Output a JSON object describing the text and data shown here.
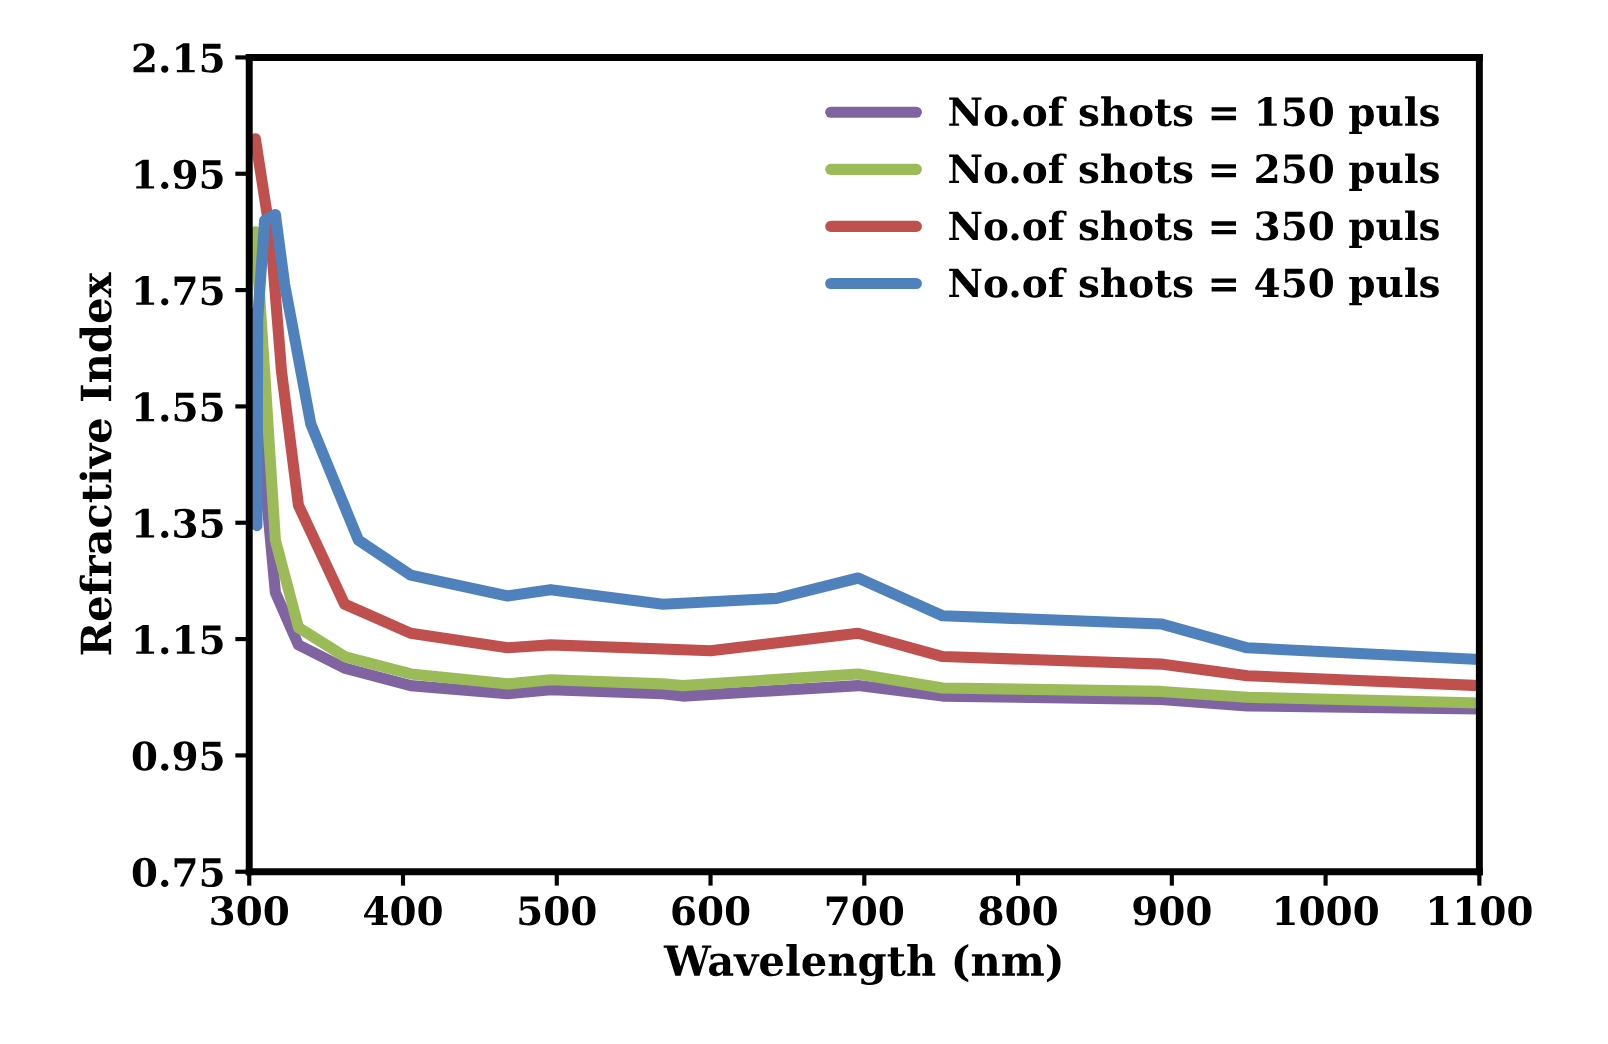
{
  "chart_data": {
    "type": "line",
    "xlabel": "Wavelength (nm)",
    "ylabel": "Refractive Index",
    "xlim": [
      300,
      1100
    ],
    "xticks": [
      300,
      400,
      500,
      600,
      700,
      800,
      900,
      1000,
      1100
    ],
    "ylim": [
      0.75,
      2.15
    ],
    "yticks": [
      0.75,
      0.95,
      1.15,
      1.35,
      1.55,
      1.75,
      1.95,
      2.15
    ],
    "grid": false,
    "legend": "top right",
    "marker": "none",
    "line_style": "solid",
    "series": [
      {
        "name": "No.of shots = 150 puls",
        "color": "#8064a2",
        "x": [
          303,
          310,
          317,
          332,
          362,
          405,
          468,
          496,
          569,
          582,
          696,
          751,
          893,
          949,
          1100
        ],
        "values": [
          1.71,
          1.43,
          1.23,
          1.14,
          1.1,
          1.07,
          1.056,
          1.063,
          1.056,
          1.052,
          1.07,
          1.052,
          1.046,
          1.035,
          1.03
        ]
      },
      {
        "name": "No.of shots = 250 puls",
        "color": "#9bbb59",
        "x": [
          304,
          310,
          317,
          332,
          362,
          405,
          468,
          496,
          569,
          582,
          696,
          751,
          893,
          949,
          1100
        ],
        "values": [
          1.85,
          1.61,
          1.32,
          1.17,
          1.12,
          1.09,
          1.073,
          1.08,
          1.073,
          1.07,
          1.09,
          1.066,
          1.06,
          1.05,
          1.04
        ]
      },
      {
        "name": "No.of shots = 350 puls",
        "color": "#c0504d",
        "x": [
          304,
          314,
          321,
          332,
          362,
          405,
          468,
          496,
          600,
          696,
          751,
          893,
          949,
          1100
        ],
        "values": [
          2.01,
          1.84,
          1.61,
          1.38,
          1.21,
          1.16,
          1.135,
          1.14,
          1.13,
          1.16,
          1.12,
          1.107,
          1.087,
          1.07
        ]
      },
      {
        "name": "No.of shots = 450 puls",
        "color": "#4f81bd",
        "x": [
          305,
          305.5,
          310,
          317,
          323,
          340,
          371,
          405,
          468,
          496,
          569,
          643,
          696,
          751,
          893,
          949,
          1100
        ],
        "values": [
          1.345,
          1.7,
          1.87,
          1.88,
          1.76,
          1.52,
          1.32,
          1.26,
          1.224,
          1.235,
          1.21,
          1.22,
          1.255,
          1.19,
          1.176,
          1.135,
          1.115
        ]
      }
    ]
  }
}
